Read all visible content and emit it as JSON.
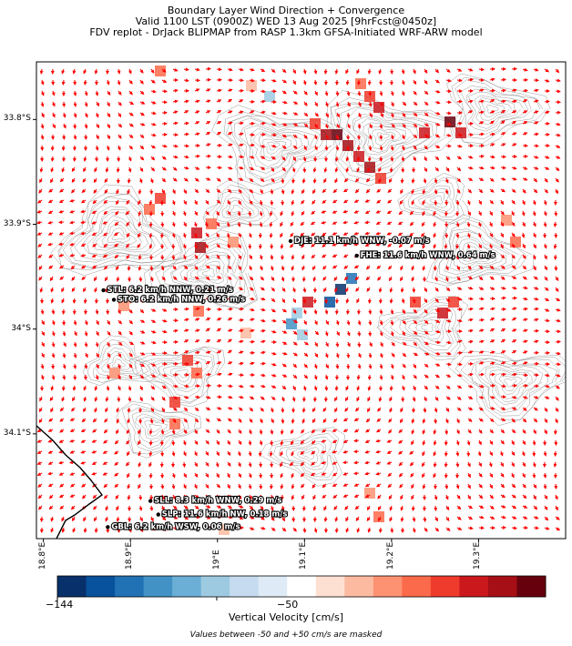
{
  "header": {
    "line1": "Boundary Layer Wind Direction + Convergence",
    "line2": "Valid 1100 LST (0900Z) WED 13 Aug 2025 [9hrFcst@0450z]",
    "line3": "FDV replot - DrJack BLIPMAP from RASP 1.3km GFSA-Initiated WRF-ARW model"
  },
  "axes": {
    "lat_ticks": [
      {
        "value": -33.8,
        "label": "33.8°S"
      },
      {
        "value": -33.9,
        "label": "33.9°S"
      },
      {
        "value": -34.0,
        "label": "34°S"
      },
      {
        "value": -34.1,
        "label": "34.1°S"
      }
    ],
    "lon_ticks": [
      {
        "value": 18.8,
        "label": "18.8°E"
      },
      {
        "value": 18.9,
        "label": "18.9°E"
      },
      {
        "value": 19.0,
        "label": "19°E"
      },
      {
        "value": 19.1,
        "label": "19.1°E"
      },
      {
        "value": 19.2,
        "label": "19.2°E"
      },
      {
        "value": 19.3,
        "label": "19.3°E"
      }
    ],
    "lat_range": [
      -34.2,
      -33.745
    ],
    "lon_range": [
      18.792,
      19.4
    ]
  },
  "stations": [
    {
      "label": "DJE: 11.1 km/h WNW, -0.07 m/s",
      "lat": -33.916,
      "lon": 19.084
    },
    {
      "label": "FHE: 11.6 km/h WNW, 0.64 m/s",
      "lat": -33.93,
      "lon": 19.16
    },
    {
      "label": "STL: 6.2 km/h NNW, 0.21 m/s",
      "lat": -33.963,
      "lon": 18.869
    },
    {
      "label": "STO: 6.2 km/h NNW, 0.26 m/s",
      "lat": -33.972,
      "lon": 18.881
    },
    {
      "label": "SLL: 8.3 km/h WNW, 0.29 m/s",
      "lat": -34.164,
      "lon": 18.923
    },
    {
      "label": "SLP: 11.6 km/h NW, 0.18 m/s",
      "lat": -34.177,
      "lon": 18.932
    },
    {
      "label": "GBL: 6.2 km/h WSW, 0.06 m/s",
      "lat": -34.189,
      "lon": 18.874
    }
  ],
  "colorbar": {
    "label": "Vertical Velocity [cm/s]",
    "ticks": [
      {
        "value": -144,
        "label": "−144"
      },
      {
        "value": -50,
        "label": "−50"
      }
    ],
    "colors": [
      "#08306b",
      "#08519c",
      "#2171b5",
      "#4292c6",
      "#6baed6",
      "#9ecae1",
      "#c6dbef",
      "#deebf7",
      "#ffffff",
      "#fee0d2",
      "#fcbba1",
      "#fc9272",
      "#fb6a4a",
      "#ef3b2c",
      "#cb181d",
      "#a50f15",
      "#67000d"
    ],
    "range": [
      -144,
      144
    ]
  },
  "note": "Values between -50 and +50 cm/s are masked",
  "colors": {
    "arrow": "#ff0000",
    "contour": "#808080",
    "coast": "#000000"
  }
}
